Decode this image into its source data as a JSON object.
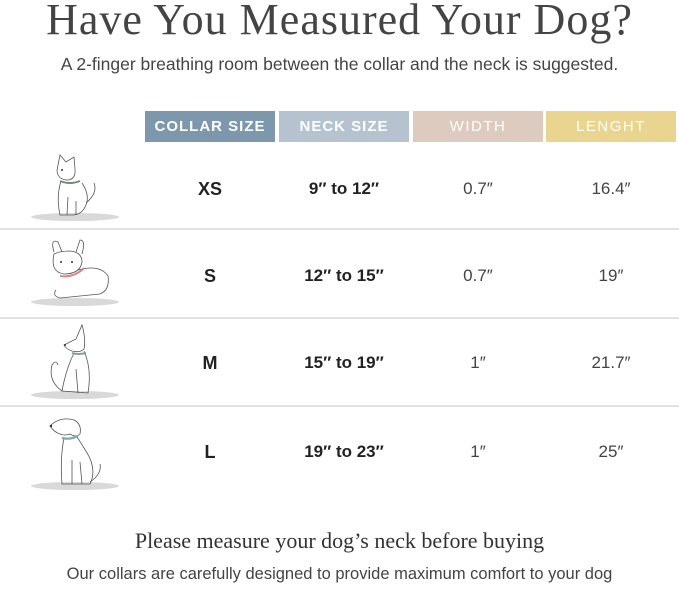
{
  "title": "Have You Measured Your Dog?",
  "subtitle": "A 2-finger breathing room between the collar and the neck is suggested.",
  "headers": [
    {
      "label": "COLLAR SIZE",
      "color": "#7d97ad"
    },
    {
      "label": "NECK SIZE",
      "color": "#b4c3cf"
    },
    {
      "label": "WIDTH",
      "color": "#dccbbe"
    },
    {
      "label": "LENGHT",
      "color": "#e9d58f"
    }
  ],
  "rows": [
    {
      "size": "XS",
      "neck": "9″ to 12″",
      "width": "0.7″",
      "length": "16.4″",
      "dog_icon": "small-dog-icon",
      "collar_color": "#6f8a7a"
    },
    {
      "size": "S",
      "neck": "12″ to 15″",
      "width": "0.7″",
      "length": "19″",
      "dog_icon": "french-bulldog-icon",
      "collar_color": "#d48a8a"
    },
    {
      "size": "M",
      "neck": "15″ to 19″",
      "width": "1″",
      "length": "21.7″",
      "dog_icon": "medium-dog-icon",
      "collar_color": "#7fa0a8"
    },
    {
      "size": "L",
      "neck": "19″ to 23″",
      "width": "1″",
      "length": "25″",
      "dog_icon": "large-dog-icon",
      "collar_color": "#6fb0b0"
    }
  ],
  "footer": {
    "heading": "Please measure your dog’s neck before buying",
    "text": "Our collars are carefully designed to provide maximum comfort to your dog"
  }
}
